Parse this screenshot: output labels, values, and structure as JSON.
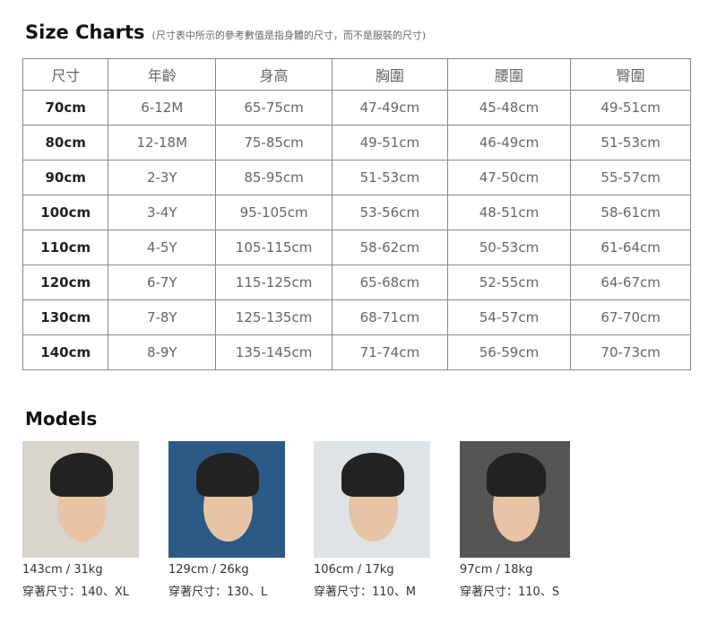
{
  "title": "Size Charts",
  "subtitle": "(尺寸表中所示的參考數值是指身體的尺寸，而不是服裝的尺寸)",
  "table": {
    "headers": [
      "尺寸",
      "年齡",
      "身高",
      "胸圍",
      "腰圍",
      "臀圍"
    ],
    "rows": [
      [
        "70cm",
        "6-12M",
        "65-75cm",
        "47-49cm",
        "45-48cm",
        "49-51cm"
      ],
      [
        "80cm",
        "12-18M",
        "75-85cm",
        "49-51cm",
        "46-49cm",
        "51-53cm"
      ],
      [
        "90cm",
        "2-3Y",
        "85-95cm",
        "51-53cm",
        "47-50cm",
        "55-57cm"
      ],
      [
        "100cm",
        "3-4Y",
        "95-105cm",
        "53-56cm",
        "48-51cm",
        "58-61cm"
      ],
      [
        "110cm",
        "4-5Y",
        "105-115cm",
        "58-62cm",
        "50-53cm",
        "61-64cm"
      ],
      [
        "120cm",
        "6-7Y",
        "115-125cm",
        "65-68cm",
        "52-55cm",
        "64-67cm"
      ],
      [
        "130cm",
        "7-8Y",
        "125-135cm",
        "68-71cm",
        "54-57cm",
        "67-70cm"
      ],
      [
        "140cm",
        "8-9Y",
        "135-145cm",
        "71-74cm",
        "56-59cm",
        "70-73cm"
      ]
    ]
  },
  "models_title": "Models",
  "models": [
    {
      "stats": "143cm / 31kg",
      "wearing": "穿著尺寸：140、XL",
      "bg": "#d9d4cc"
    },
    {
      "stats": "129cm / 26kg",
      "wearing": "穿著尺寸：130、L",
      "bg": "#2c5a86"
    },
    {
      "stats": "106cm / 17kg",
      "wearing": "穿著尺寸：110、M",
      "bg": "#dfe3e6"
    },
    {
      "stats": "97cm / 18kg",
      "wearing": "穿著尺寸：110、S",
      "bg": "#555555"
    }
  ]
}
